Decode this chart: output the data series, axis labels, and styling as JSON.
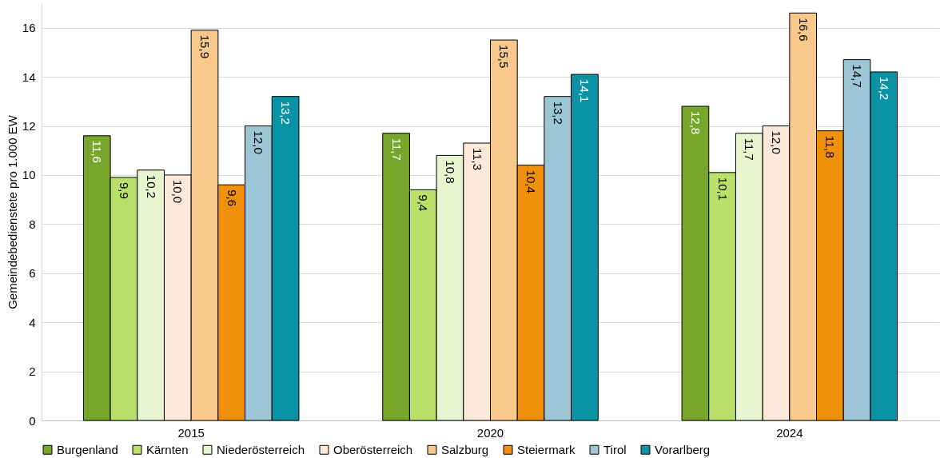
{
  "chart_data": {
    "type": "bar",
    "ylabel": "Gemeindebedienstete pro 1.000 EW",
    "categories": [
      "2015",
      "2020",
      "2024"
    ],
    "ylim": [
      0,
      17
    ],
    "yticks": [
      0,
      2,
      4,
      6,
      8,
      10,
      12,
      14,
      16
    ],
    "grid": "y",
    "legend": "bottom",
    "series": [
      {
        "name": "Burgenland",
        "color": "#77a72a",
        "values": [
          11.6,
          11.7,
          12.8
        ],
        "value_labels": [
          "11,6",
          "11,7",
          "12,8"
        ]
      },
      {
        "name": "Kärnten",
        "color": "#b8e06a",
        "values": [
          9.9,
          9.4,
          10.1
        ],
        "value_labels": [
          "9,9",
          "9,4",
          "10,1"
        ]
      },
      {
        "name": "Niederösterreich",
        "color": "#e8f5cf",
        "values": [
          10.2,
          10.8,
          11.7
        ],
        "value_labels": [
          "10,2",
          "10,8",
          "11,7"
        ]
      },
      {
        "name": "Oberösterreich",
        "color": "#fde9d9",
        "values": [
          10.0,
          11.3,
          12.0
        ],
        "value_labels": [
          "10,0",
          "11,3",
          "12,0"
        ]
      },
      {
        "name": "Salzburg",
        "color": "#f9c98c",
        "values": [
          15.9,
          15.5,
          16.6
        ],
        "value_labels": [
          "15,9",
          "15,5",
          "16,6"
        ]
      },
      {
        "name": "Steiermark",
        "color": "#f0900a",
        "values": [
          9.6,
          10.4,
          11.8
        ],
        "value_labels": [
          "9,6",
          "10,4",
          "11,8"
        ]
      },
      {
        "name": "Tirol",
        "color": "#9cc5d5",
        "values": [
          12.0,
          13.2,
          14.7
        ],
        "value_labels": [
          "12,0",
          "13,2",
          "14,7"
        ]
      },
      {
        "name": "Vorarlberg",
        "color": "#0a93a5",
        "values": [
          13.2,
          14.1,
          14.2
        ],
        "value_labels": [
          "13,2",
          "14,1",
          "14,2"
        ]
      }
    ]
  }
}
